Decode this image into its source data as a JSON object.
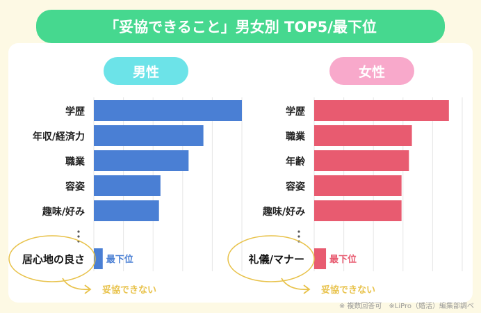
{
  "title": "「妥協できること」男女別 TOP5/最下位",
  "footnote": "※ 複数回答可　※LiPro（婚活）編集部調べ",
  "colors": {
    "title": "#46d88f",
    "male_pill": "#6ce3e8",
    "female_pill": "#f8a9cb",
    "male_bar": "#4a7fd4",
    "female_bar": "#e85b70",
    "annotation": "#e8c24a"
  },
  "chart_data": [
    {
      "type": "bar",
      "orientation": "horizontal",
      "title": "男性",
      "categories": [
        "学歴",
        "年収/経済力",
        "職業",
        "容姿",
        "趣味/好み"
      ],
      "values": [
        5.0,
        3.7,
        3.2,
        2.25,
        2.2
      ],
      "bottom": {
        "category": "居心地の良さ",
        "value": 0.3,
        "label": "最下位",
        "note": "妥協できない"
      },
      "xlim": [
        0,
        5.5
      ],
      "grid": true
    },
    {
      "type": "bar",
      "orientation": "horizontal",
      "title": "女性",
      "categories": [
        "学歴",
        "職業",
        "年齢",
        "容姿",
        "趣味/好み"
      ],
      "values": [
        4.55,
        3.3,
        3.2,
        2.95,
        2.95
      ],
      "bottom": {
        "category": "礼儀/マナー",
        "value": 0.4,
        "label": "最下位",
        "note": "妥協できない"
      },
      "xlim": [
        0,
        5.5
      ],
      "grid": true
    }
  ]
}
